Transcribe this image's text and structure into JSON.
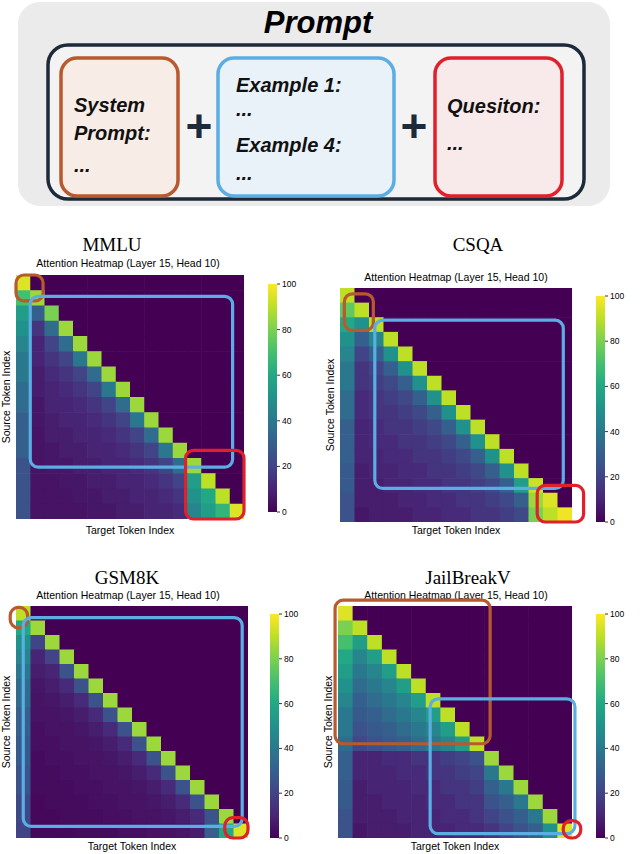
{
  "prompt_figure": {
    "title": "Prompt",
    "joiner": "+",
    "segments": [
      {
        "lines": [
          "System",
          "Prompt:",
          "..."
        ],
        "color": "#b85a2d"
      },
      {
        "lines": [
          "Example 1:",
          "...",
          "Example 4:",
          "..."
        ],
        "color": "#5aaee3"
      },
      {
        "lines": [
          "Quesiton:",
          "..."
        ],
        "color": "#e0202a"
      }
    ]
  },
  "chart_data": [
    {
      "type": "heatmap",
      "title": "MMLU",
      "subtitle": "Attention Heatmap (Layer 15, Head 10)",
      "x_label": "Target Token Index",
      "y_label": "Source Token Index",
      "xlim": [
        0,
        16
      ],
      "ylim": [
        0,
        16
      ],
      "tick_labels": false,
      "colorbar_range": [
        0,
        100
      ],
      "colorbar_ticks": [
        0,
        20,
        40,
        60,
        80,
        100
      ],
      "regions": [
        {
          "color": "#b85a2d",
          "x": [
            0,
            1.9
          ],
          "y": [
            0,
            1.7
          ]
        },
        {
          "color": "#5aaee3",
          "x": [
            1,
            15.2
          ],
          "y": [
            1.4,
            12.6
          ]
        },
        {
          "color": "#e0202a",
          "x": [
            11.9,
            16
          ],
          "y": [
            11.5,
            16
          ]
        }
      ],
      "cells": [
        [
          95,
          0,
          0,
          0,
          0,
          0,
          0,
          0,
          0,
          0,
          0,
          0,
          0,
          0,
          0,
          0
        ],
        [
          70,
          85,
          0,
          0,
          0,
          0,
          0,
          0,
          0,
          0,
          0,
          0,
          0,
          0,
          0,
          0
        ],
        [
          55,
          30,
          80,
          0,
          0,
          0,
          0,
          0,
          0,
          0,
          0,
          0,
          0,
          0,
          0,
          0
        ],
        [
          50,
          15,
          35,
          85,
          0,
          0,
          0,
          0,
          0,
          0,
          0,
          0,
          0,
          0,
          0,
          0
        ],
        [
          45,
          10,
          20,
          35,
          85,
          0,
          0,
          0,
          0,
          0,
          0,
          0,
          0,
          0,
          0,
          0
        ],
        [
          40,
          10,
          15,
          20,
          40,
          85,
          0,
          0,
          0,
          0,
          0,
          0,
          0,
          0,
          0,
          0
        ],
        [
          40,
          8,
          12,
          15,
          20,
          35,
          85,
          0,
          0,
          0,
          0,
          0,
          0,
          0,
          0,
          0
        ],
        [
          35,
          8,
          10,
          12,
          15,
          20,
          40,
          85,
          0,
          0,
          0,
          0,
          0,
          0,
          0,
          0
        ],
        [
          35,
          6,
          10,
          10,
          12,
          15,
          20,
          35,
          85,
          0,
          0,
          0,
          0,
          0,
          0,
          0
        ],
        [
          30,
          6,
          8,
          10,
          10,
          12,
          15,
          20,
          40,
          85,
          0,
          0,
          0,
          0,
          0,
          0
        ],
        [
          30,
          5,
          8,
          8,
          10,
          10,
          12,
          15,
          20,
          35,
          85,
          0,
          0,
          0,
          0,
          0
        ],
        [
          30,
          5,
          6,
          8,
          8,
          10,
          10,
          12,
          15,
          20,
          40,
          85,
          0,
          0,
          0,
          0
        ],
        [
          25,
          5,
          6,
          6,
          8,
          8,
          10,
          10,
          12,
          15,
          20,
          35,
          85,
          0,
          0,
          0
        ],
        [
          25,
          5,
          5,
          6,
          6,
          8,
          8,
          10,
          10,
          12,
          15,
          20,
          55,
          90,
          0,
          0
        ],
        [
          25,
          5,
          5,
          5,
          6,
          6,
          8,
          8,
          10,
          10,
          12,
          15,
          50,
          60,
          90,
          0
        ],
        [
          25,
          5,
          5,
          5,
          5,
          6,
          6,
          8,
          8,
          10,
          10,
          12,
          45,
          55,
          65,
          95
        ]
      ]
    },
    {
      "type": "heatmap",
      "title": "CSQA",
      "subtitle": "Attention Heatmap (Layer 15, Head 10)",
      "x_label": "Target Token Index",
      "y_label": "Source Token Index",
      "xlim": [
        0,
        16
      ],
      "ylim": [
        0,
        16
      ],
      "tick_labels": false,
      "colorbar_range": [
        0,
        100
      ],
      "colorbar_ticks": [
        0,
        20,
        40,
        60,
        80,
        100
      ],
      "regions": [
        {
          "color": "#b85a2d",
          "x": [
            0.3,
            2.3
          ],
          "y": [
            0.4,
            2.9
          ]
        },
        {
          "color": "#5aaee3",
          "x": [
            2.4,
            15.4
          ],
          "y": [
            2.2,
            13.7
          ]
        },
        {
          "color": "#e0202a",
          "x": [
            13.6,
            16.8
          ],
          "y": [
            13.5,
            16
          ]
        }
      ],
      "cells": [
        [
          90,
          0,
          0,
          0,
          0,
          0,
          0,
          0,
          0,
          0,
          0,
          0,
          0,
          0,
          0,
          0
        ],
        [
          75,
          90,
          0,
          0,
          0,
          0,
          0,
          0,
          0,
          0,
          0,
          0,
          0,
          0,
          0,
          0
        ],
        [
          60,
          50,
          90,
          0,
          0,
          0,
          0,
          0,
          0,
          0,
          0,
          0,
          0,
          0,
          0,
          0
        ],
        [
          50,
          30,
          45,
          90,
          0,
          0,
          0,
          0,
          0,
          0,
          0,
          0,
          0,
          0,
          0,
          0
        ],
        [
          45,
          20,
          30,
          50,
          90,
          0,
          0,
          0,
          0,
          0,
          0,
          0,
          0,
          0,
          0,
          0
        ],
        [
          40,
          15,
          20,
          30,
          50,
          90,
          0,
          0,
          0,
          0,
          0,
          0,
          0,
          0,
          0,
          0
        ],
        [
          40,
          15,
          18,
          22,
          30,
          50,
          90,
          0,
          0,
          0,
          0,
          0,
          0,
          0,
          0,
          0
        ],
        [
          35,
          12,
          15,
          18,
          22,
          30,
          50,
          90,
          0,
          0,
          0,
          0,
          0,
          0,
          0,
          0
        ],
        [
          35,
          12,
          15,
          15,
          18,
          22,
          30,
          50,
          90,
          0,
          0,
          0,
          0,
          0,
          0,
          0
        ],
        [
          30,
          10,
          12,
          15,
          15,
          18,
          22,
          30,
          50,
          90,
          0,
          0,
          0,
          0,
          0,
          0
        ],
        [
          30,
          10,
          12,
          12,
          15,
          15,
          18,
          22,
          30,
          50,
          90,
          0,
          0,
          0,
          0,
          0
        ],
        [
          30,
          10,
          10,
          12,
          12,
          15,
          15,
          18,
          22,
          30,
          50,
          90,
          0,
          0,
          0,
          0
        ],
        [
          28,
          8,
          10,
          10,
          12,
          12,
          15,
          15,
          18,
          22,
          30,
          50,
          90,
          0,
          0,
          0
        ],
        [
          28,
          8,
          8,
          10,
          10,
          12,
          12,
          15,
          15,
          18,
          22,
          30,
          55,
          92,
          0,
          0
        ],
        [
          25,
          8,
          8,
          8,
          10,
          10,
          12,
          12,
          15,
          15,
          18,
          22,
          30,
          85,
          95,
          0
        ],
        [
          25,
          6,
          8,
          8,
          8,
          10,
          10,
          12,
          12,
          15,
          15,
          18,
          22,
          80,
          90,
          98
        ]
      ]
    },
    {
      "type": "heatmap",
      "title": "GSM8K",
      "subtitle": "Attention Heatmap (Layer 15, Head 10)",
      "x_label": "Target Token Index",
      "y_label": "Source Token Index",
      "xlim": [
        0,
        16
      ],
      "ylim": [
        0,
        16
      ],
      "tick_labels": false,
      "colorbar_range": [
        0,
        100
      ],
      "colorbar_ticks": [
        0,
        20,
        40,
        60,
        80,
        100
      ],
      "regions": [
        {
          "color": "#b85a2d",
          "x": [
            -0.4,
            0.8
          ],
          "y": [
            0.1,
            1.5
          ]
        },
        {
          "color": "#5aaee3",
          "x": [
            0.5,
            15.6
          ],
          "y": [
            0.8,
            15.2
          ]
        },
        {
          "color": "#e0202a",
          "x": [
            14.4,
            16
          ],
          "y": [
            14.6,
            16
          ]
        }
      ],
      "cells": [
        [
          90,
          0,
          0,
          0,
          0,
          0,
          0,
          0,
          0,
          0,
          0,
          0,
          0,
          0,
          0,
          0
        ],
        [
          60,
          85,
          0,
          0,
          0,
          0,
          0,
          0,
          0,
          0,
          0,
          0,
          0,
          0,
          0,
          0
        ],
        [
          50,
          20,
          85,
          0,
          0,
          0,
          0,
          0,
          0,
          0,
          0,
          0,
          0,
          0,
          0,
          0
        ],
        [
          45,
          10,
          20,
          85,
          0,
          0,
          0,
          0,
          0,
          0,
          0,
          0,
          0,
          0,
          0,
          0
        ],
        [
          40,
          8,
          10,
          25,
          85,
          0,
          0,
          0,
          0,
          0,
          0,
          0,
          0,
          0,
          0,
          0
        ],
        [
          35,
          6,
          8,
          12,
          25,
          85,
          0,
          0,
          0,
          0,
          0,
          0,
          0,
          0,
          0,
          0
        ],
        [
          35,
          5,
          6,
          8,
          12,
          25,
          85,
          0,
          0,
          0,
          0,
          0,
          0,
          0,
          0,
          0
        ],
        [
          30,
          5,
          5,
          6,
          8,
          12,
          25,
          85,
          0,
          0,
          0,
          0,
          0,
          0,
          0,
          0
        ],
        [
          30,
          4,
          5,
          5,
          6,
          8,
          12,
          25,
          85,
          0,
          0,
          0,
          0,
          0,
          0,
          0
        ],
        [
          28,
          4,
          4,
          5,
          5,
          6,
          8,
          12,
          25,
          85,
          0,
          0,
          0,
          0,
          0,
          0
        ],
        [
          28,
          3,
          4,
          4,
          5,
          5,
          6,
          8,
          12,
          25,
          85,
          0,
          0,
          0,
          0,
          0
        ],
        [
          25,
          3,
          3,
          4,
          4,
          5,
          5,
          6,
          8,
          12,
          25,
          85,
          0,
          0,
          0,
          0
        ],
        [
          25,
          3,
          3,
          3,
          4,
          4,
          5,
          5,
          6,
          8,
          12,
          25,
          85,
          0,
          0,
          0
        ],
        [
          22,
          2,
          3,
          3,
          3,
          4,
          4,
          5,
          5,
          6,
          8,
          12,
          25,
          85,
          0,
          0
        ],
        [
          22,
          2,
          2,
          3,
          3,
          3,
          4,
          4,
          5,
          5,
          6,
          8,
          12,
          25,
          85,
          0
        ],
        [
          20,
          2,
          2,
          2,
          3,
          3,
          3,
          4,
          4,
          5,
          5,
          6,
          8,
          30,
          60,
          95
        ]
      ]
    },
    {
      "type": "heatmap",
      "title": "JailBreakV",
      "subtitle": "Attention Heatmap (Layer 15, Head 10)",
      "x_label": "Target Token Index",
      "y_label": "Source Token Index",
      "xlim": [
        0,
        16
      ],
      "ylim": [
        0,
        16
      ],
      "tick_labels": false,
      "colorbar_range": [
        0,
        100
      ],
      "colorbar_ticks": [
        0,
        20,
        40,
        60,
        80,
        100
      ],
      "regions": [
        {
          "color": "#b85a2d",
          "x": [
            -0.2,
            10.4
          ],
          "y": [
            -0.4,
            9.5
          ]
        },
        {
          "color": "#5aaee3",
          "x": [
            6.3,
            16.2
          ],
          "y": [
            6.4,
            15.7
          ]
        },
        {
          "color": "#e0202a",
          "x": [
            15.4,
            16.6
          ],
          "y": [
            14.8,
            16
          ]
        }
      ],
      "cells": [
        [
          95,
          0,
          0,
          0,
          0,
          0,
          0,
          0,
          0,
          0,
          0,
          0,
          0,
          0,
          0,
          0
        ],
        [
          80,
          90,
          0,
          0,
          0,
          0,
          0,
          0,
          0,
          0,
          0,
          0,
          0,
          0,
          0,
          0
        ],
        [
          70,
          55,
          90,
          0,
          0,
          0,
          0,
          0,
          0,
          0,
          0,
          0,
          0,
          0,
          0,
          0
        ],
        [
          60,
          45,
          55,
          90,
          0,
          0,
          0,
          0,
          0,
          0,
          0,
          0,
          0,
          0,
          0,
          0
        ],
        [
          55,
          40,
          45,
          55,
          90,
          0,
          0,
          0,
          0,
          0,
          0,
          0,
          0,
          0,
          0,
          0
        ],
        [
          50,
          35,
          40,
          45,
          55,
          90,
          0,
          0,
          0,
          0,
          0,
          0,
          0,
          0,
          0,
          0
        ],
        [
          45,
          30,
          35,
          40,
          45,
          55,
          90,
          0,
          0,
          0,
          0,
          0,
          0,
          0,
          0,
          0
        ],
        [
          40,
          28,
          30,
          35,
          40,
          45,
          55,
          90,
          0,
          0,
          0,
          0,
          0,
          0,
          0,
          0
        ],
        [
          40,
          25,
          28,
          30,
          35,
          40,
          45,
          55,
          90,
          0,
          0,
          0,
          0,
          0,
          0,
          0
        ],
        [
          35,
          22,
          25,
          28,
          30,
          35,
          40,
          45,
          55,
          90,
          0,
          0,
          0,
          0,
          0,
          0
        ],
        [
          30,
          10,
          10,
          12,
          12,
          15,
          15,
          18,
          20,
          25,
          85,
          0,
          0,
          0,
          0,
          0
        ],
        [
          30,
          10,
          10,
          10,
          12,
          12,
          15,
          15,
          18,
          20,
          40,
          85,
          0,
          0,
          0,
          0
        ],
        [
          28,
          8,
          10,
          10,
          10,
          12,
          12,
          15,
          15,
          18,
          30,
          40,
          85,
          0,
          0,
          0
        ],
        [
          28,
          8,
          8,
          10,
          10,
          10,
          12,
          12,
          15,
          15,
          25,
          30,
          40,
          85,
          0,
          0
        ],
        [
          25,
          8,
          8,
          8,
          10,
          10,
          10,
          12,
          12,
          15,
          20,
          25,
          30,
          40,
          85,
          0
        ],
        [
          25,
          6,
          8,
          8,
          8,
          10,
          10,
          10,
          12,
          12,
          15,
          20,
          25,
          30,
          50,
          95
        ]
      ]
    }
  ]
}
